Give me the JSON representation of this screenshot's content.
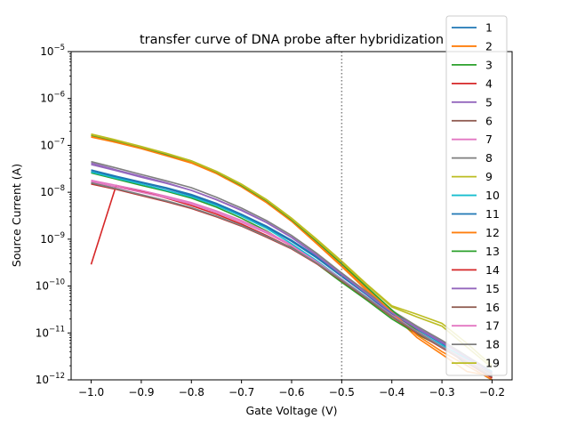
{
  "chart_data": {
    "type": "line",
    "title": "transfer curve of DNA probe after hybridization",
    "xlabel": "Gate Voltage (V)",
    "ylabel": "Source Current (A)",
    "xlim": [
      -1.04,
      -0.16
    ],
    "ylim": [
      1e-12,
      1e-05
    ],
    "yscale": "log",
    "grid": false,
    "legend_position": "right",
    "x_ticks": [
      -1.0,
      -0.9,
      -0.8,
      -0.7,
      -0.6,
      -0.5,
      -0.4,
      -0.3,
      -0.2
    ],
    "x_tick_labels": [
      "−1.0",
      "−0.9",
      "−0.8",
      "−0.7",
      "−0.6",
      "−0.5",
      "−0.4",
      "−0.3",
      "−0.2"
    ],
    "y_ticks": [
      {
        "value": 1e-12,
        "base": "10",
        "exp": "−12"
      },
      {
        "value": 1e-11,
        "base": "10",
        "exp": "−11"
      },
      {
        "value": 1e-10,
        "base": "10",
        "exp": "−10"
      },
      {
        "value": 1e-09,
        "base": "10",
        "exp": "−9"
      },
      {
        "value": 1e-08,
        "base": "10",
        "exp": "−8"
      },
      {
        "value": 1e-07,
        "base": "10",
        "exp": "−7"
      },
      {
        "value": 1e-06,
        "base": "10",
        "exp": "−6"
      },
      {
        "value": 1e-05,
        "base": "10",
        "exp": "−5"
      }
    ],
    "vline": {
      "x": -0.5,
      "style": "dotted",
      "color": "#808080"
    },
    "x": [
      -1.0,
      -0.95,
      -0.9,
      -0.85,
      -0.8,
      -0.75,
      -0.7,
      -0.65,
      -0.6,
      -0.55,
      -0.5,
      -0.45,
      -0.4,
      -0.35,
      -0.3,
      -0.25,
      -0.2
    ],
    "series": [
      {
        "name": "1",
        "color": "#1f77b4",
        "values": [
          2.8e-08,
          2.1e-08,
          1.6e-08,
          1.2e-08,
          8.5e-09,
          5.5e-09,
          3.3e-09,
          1.8e-09,
          9e-10,
          4e-10,
          1.6e-10,
          6.5e-11,
          2.5e-11,
          1.2e-11,
          6e-12,
          2e-12,
          1e-12
        ]
      },
      {
        "name": "2",
        "color": "#ff7f0e",
        "values": [
          1.5e-07,
          1.15e-07,
          8.5e-08,
          6e-08,
          4.2e-08,
          2.5e-08,
          1.3e-08,
          6e-09,
          2.4e-09,
          8e-10,
          2.6e-10,
          8e-11,
          2.6e-11,
          8e-12,
          3.5e-12,
          1.5e-12,
          1.2e-12
        ]
      },
      {
        "name": "3",
        "color": "#2ca02c",
        "values": [
          2.6e-08,
          1.9e-08,
          1.4e-08,
          1.05e-08,
          7.5e-09,
          4.8e-09,
          2.8e-09,
          1.5e-09,
          7e-10,
          3e-10,
          1.2e-10,
          5e-11,
          2e-11,
          9.5e-12,
          5e-12,
          2.5e-12,
          1.3e-12
        ]
      },
      {
        "name": "4",
        "color": "#d62728",
        "values": [
          2.9e-10,
          1.4e-08,
          1.05e-08,
          7.5e-09,
          5.2e-09,
          3.4e-09,
          2.1e-09,
          1.2e-09,
          6.5e-10,
          3e-10,
          1.3e-10,
          5.5e-11,
          2.3e-11,
          1.05e-11,
          5e-12,
          2.3e-12,
          1.1e-12
        ]
      },
      {
        "name": "5",
        "color": "#9467bd",
        "values": [
          4.2e-08,
          3e-08,
          2.2e-08,
          1.6e-08,
          1.1e-08,
          7e-09,
          4.2e-09,
          2.3e-09,
          1.1e-09,
          4.6e-10,
          1.8e-10,
          7e-11,
          2.8e-11,
          1.3e-11,
          6.5e-12,
          3e-12,
          1.4e-12
        ]
      },
      {
        "name": "6",
        "color": "#8c564b",
        "values": [
          1.6e-08,
          1.2e-08,
          8.8e-09,
          6.5e-09,
          4.6e-09,
          3.1e-09,
          1.95e-09,
          1.15e-09,
          6.5e-10,
          3.1e-10,
          1.35e-10,
          5.6e-11,
          2.3e-11,
          1.05e-11,
          5e-12,
          2.4e-12,
          1.2e-12
        ]
      },
      {
        "name": "7",
        "color": "#e377c2",
        "values": [
          1.8e-08,
          1.4e-08,
          1.1e-08,
          8.2e-09,
          6e-09,
          4e-09,
          2.5e-09,
          1.45e-09,
          7.5e-10,
          3.4e-10,
          1.4e-10,
          5.8e-11,
          2.4e-11,
          1.1e-11,
          5.2e-12,
          2.6e-12,
          1.3e-12
        ]
      },
      {
        "name": "8",
        "color": "#7f7f7f",
        "values": [
          4.5e-08,
          3.3e-08,
          2.4e-08,
          1.75e-08,
          1.25e-08,
          7.8e-09,
          4.6e-09,
          2.5e-09,
          1.2e-09,
          5e-10,
          1.9e-10,
          7.5e-11,
          3e-11,
          1.4e-11,
          7e-12,
          3.2e-12,
          1.5e-12
        ]
      },
      {
        "name": "9",
        "color": "#bcbd22",
        "values": [
          1.75e-07,
          1.3e-07,
          9.5e-08,
          6.8e-08,
          4.7e-08,
          2.8e-08,
          1.5e-08,
          7e-09,
          2.8e-09,
          1e-09,
          3.4e-10,
          1.1e-10,
          3.8e-11,
          2.5e-11,
          1.6e-11,
          6e-12,
          2e-12
        ]
      },
      {
        "name": "10",
        "color": "#17becf",
        "values": [
          2.7e-08,
          2e-08,
          1.5e-08,
          1.1e-08,
          8e-09,
          5.2e-09,
          3.1e-09,
          1.7e-09,
          8e-10,
          3.5e-10,
          1.4e-10,
          5.8e-11,
          2.3e-11,
          1.1e-11,
          5.5e-12,
          2.8e-12,
          1.5e-12
        ]
      },
      {
        "name": "11",
        "color": "#1f77b4",
        "values": [
          3e-08,
          2.2e-08,
          1.65e-08,
          1.25e-08,
          9e-09,
          5.8e-09,
          3.4e-09,
          1.9e-09,
          9.5e-10,
          4.2e-10,
          1.7e-10,
          6.8e-11,
          2.6e-11,
          1.25e-11,
          6.2e-12,
          3e-12,
          1.4e-12
        ]
      },
      {
        "name": "12",
        "color": "#ff7f0e",
        "values": [
          1.55e-07,
          1.18e-07,
          8.8e-08,
          6.2e-08,
          4.4e-08,
          2.6e-08,
          1.35e-08,
          6.3e-09,
          2.5e-09,
          8.5e-10,
          2.8e-10,
          8.8e-11,
          2.8e-11,
          9e-12,
          4e-12,
          2e-12,
          1e-12
        ]
      },
      {
        "name": "13",
        "color": "#2ca02c",
        "values": [
          1.65e-07,
          1.25e-07,
          9.2e-08,
          6.5e-08,
          4.6e-08,
          2.7e-08,
          1.4e-08,
          6.6e-09,
          2.6e-09,
          9e-10,
          3e-10,
          9.5e-11,
          3.1e-11,
          1.1e-11,
          5e-12,
          2.5e-12,
          1.3e-12
        ]
      },
      {
        "name": "14",
        "color": "#d62728",
        "values": [
          1.5e-08,
          1.15e-08,
          8.5e-09,
          6.3e-09,
          4.5e-09,
          3e-09,
          1.9e-09,
          1.1e-09,
          6.2e-10,
          3e-10,
          1.3e-10,
          5.4e-11,
          2.2e-11,
          1e-11,
          4.8e-12,
          2.3e-12,
          1.1e-12
        ]
      },
      {
        "name": "15",
        "color": "#9467bd",
        "values": [
          3.9e-08,
          2.9e-08,
          2.1e-08,
          1.55e-08,
          1.1e-08,
          6.9e-09,
          4.1e-09,
          2.25e-09,
          1.08e-09,
          4.5e-10,
          1.75e-10,
          6.9e-11,
          2.7e-11,
          1.25e-11,
          6.2e-12,
          3e-12,
          1.4e-12
        ]
      },
      {
        "name": "16",
        "color": "#8c564b",
        "values": [
          1.55e-08,
          1.18e-08,
          8.7e-09,
          6.4e-09,
          4.6e-09,
          3.05e-09,
          1.92e-09,
          1.12e-09,
          6.3e-10,
          3.05e-10,
          1.32e-10,
          5.5e-11,
          2.25e-11,
          1.02e-11,
          4.9e-12,
          2.35e-12,
          1.15e-12
        ]
      },
      {
        "name": "17",
        "color": "#e377c2",
        "values": [
          1.7e-08,
          1.3e-08,
          1e-08,
          7.6e-09,
          5.6e-09,
          3.7e-09,
          2.3e-09,
          1.35e-09,
          7.2e-10,
          3.3e-10,
          1.38e-10,
          5.7e-11,
          2.35e-11,
          1.08e-11,
          5.1e-12,
          2.5e-12,
          1.25e-12
        ]
      },
      {
        "name": "18",
        "color": "#7f7f7f",
        "values": [
          1.6e-08,
          1.2e-08,
          8.9e-09,
          6.6e-09,
          4.7e-09,
          3.1e-09,
          1.96e-09,
          1.15e-09,
          6.4e-10,
          3.1e-10,
          1.34e-10,
          5.6e-11,
          2.3e-11,
          1.05e-11,
          5e-12,
          2.4e-12,
          1.2e-12
        ]
      },
      {
        "name": "19",
        "color": "#bcbd22",
        "values": [
          1.7e-07,
          1.28e-07,
          9.3e-08,
          6.7e-08,
          4.6e-08,
          2.75e-08,
          1.45e-08,
          6.8e-09,
          2.7e-09,
          9.5e-10,
          3.2e-10,
          1.05e-10,
          3.6e-11,
          2.2e-11,
          1.4e-11,
          5e-12,
          1.8e-12
        ]
      }
    ]
  }
}
